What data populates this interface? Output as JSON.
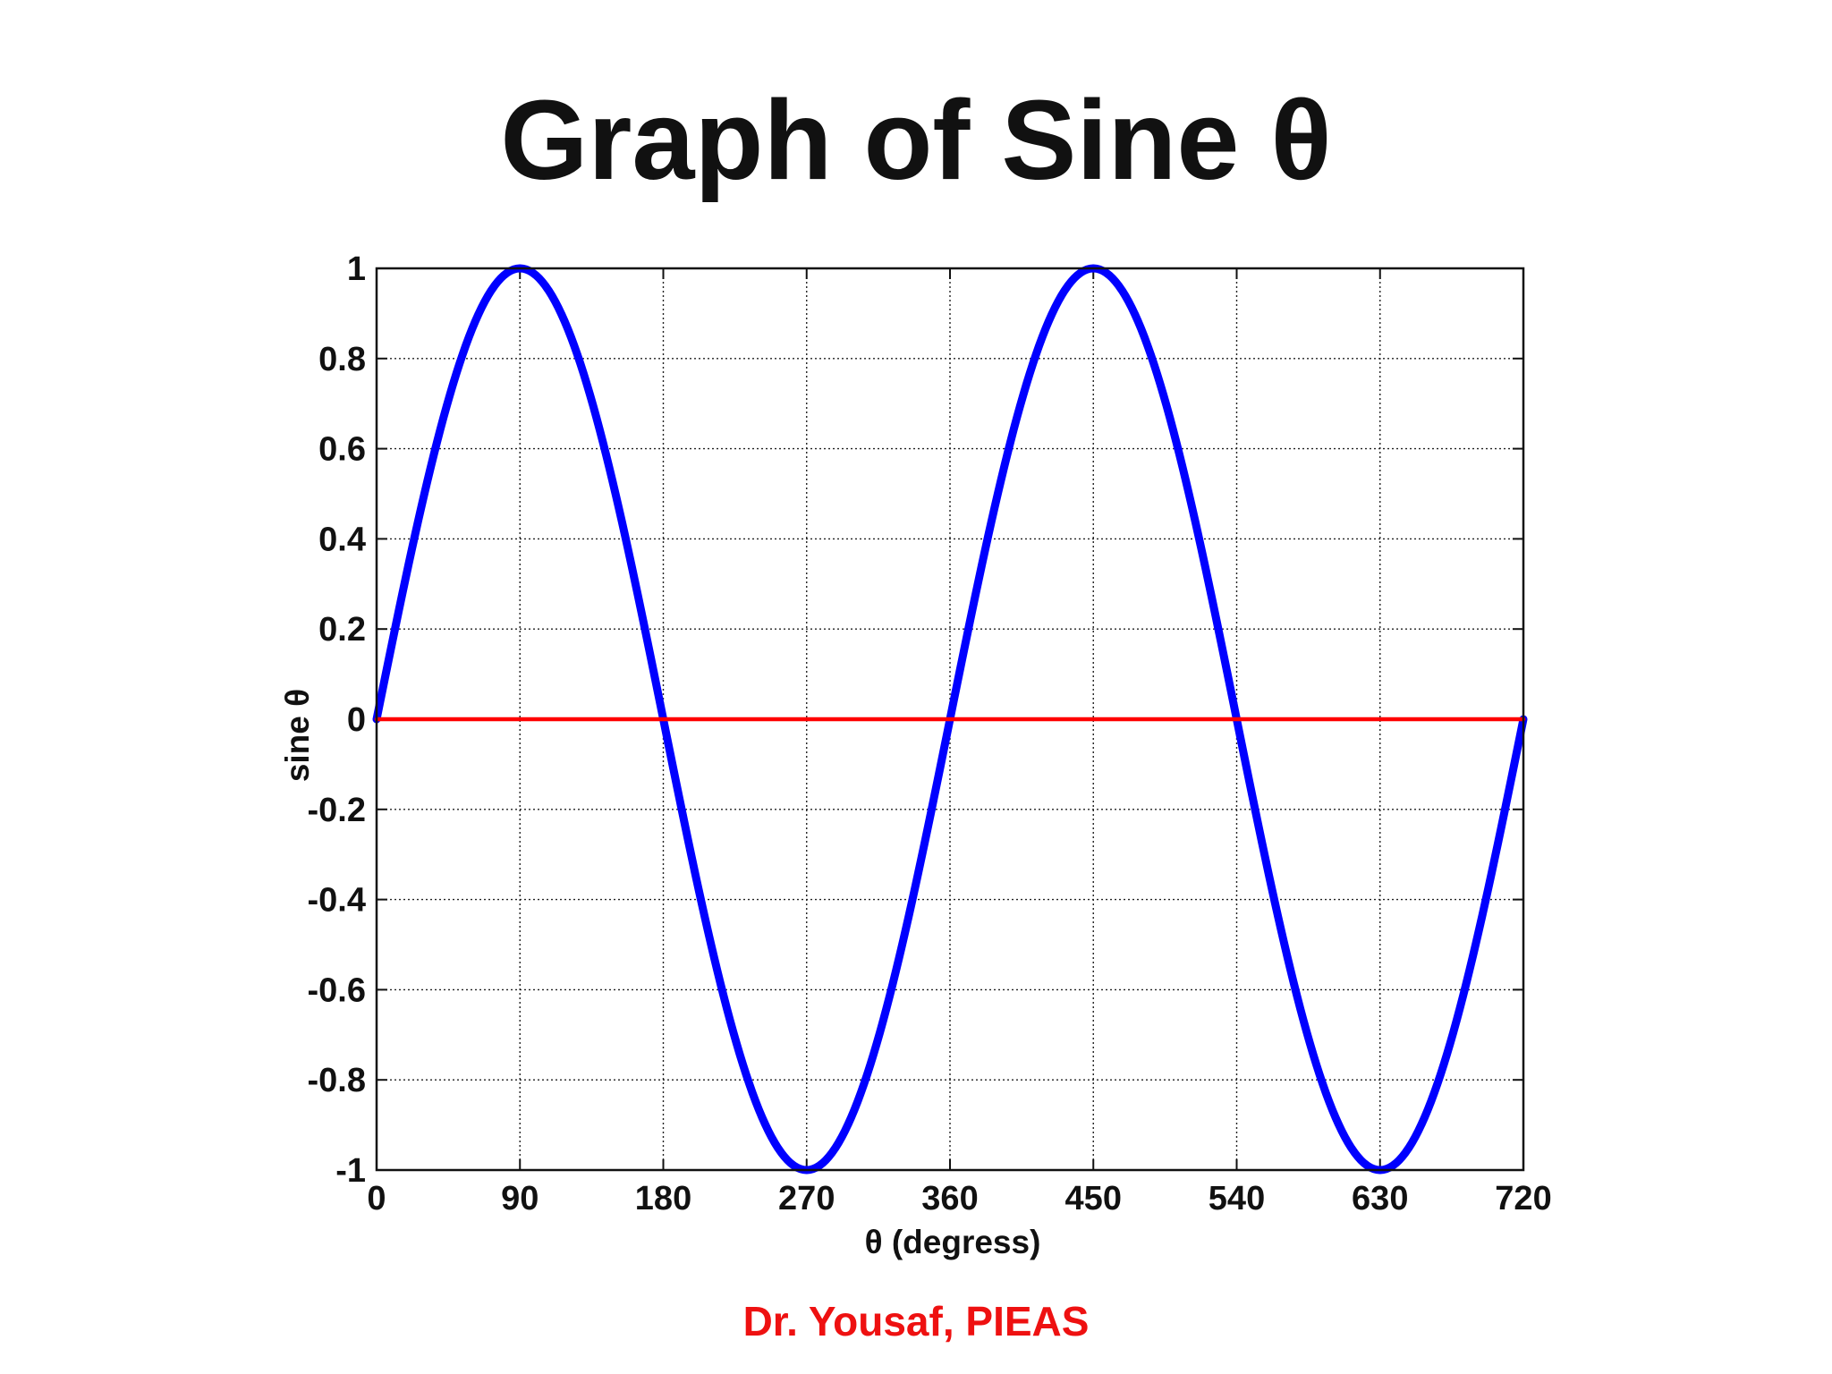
{
  "title": "Graph of Sine θ",
  "footer": "Dr. Yousaf, PIEAS",
  "chart_data": {
    "type": "line",
    "xlabel": "θ (degress)",
    "ylabel": "sine θ",
    "xlim": [
      0,
      720
    ],
    "ylim": [
      -1,
      1
    ],
    "x_ticks": [
      0,
      90,
      180,
      270,
      360,
      450,
      540,
      630,
      720
    ],
    "y_ticks": [
      1,
      0.8,
      0.6,
      0.4,
      0.2,
      0,
      -0.2,
      -0.4,
      -0.6,
      -0.8,
      -1
    ],
    "x_tick_labels": [
      "0",
      "90",
      "180",
      "270",
      "360",
      "450",
      "540",
      "630",
      "720"
    ],
    "y_tick_labels": [
      "1",
      "0.8",
      "0.6",
      "0.4",
      "0.2",
      "0",
      "-0.2",
      "-0.4",
      "-0.6",
      "-0.8",
      "-1"
    ],
    "grid": true,
    "series": [
      {
        "color": "#0000ff",
        "x": [
          0,
          15,
          30,
          45,
          60,
          75,
          90,
          105,
          120,
          135,
          150,
          165,
          180,
          195,
          210,
          225,
          240,
          255,
          270,
          285,
          300,
          315,
          330,
          345,
          360,
          375,
          390,
          405,
          420,
          435,
          450,
          465,
          480,
          495,
          510,
          525,
          540,
          555,
          570,
          585,
          600,
          615,
          630,
          645,
          660,
          675,
          690,
          705,
          720
        ],
        "y": [
          0,
          0.259,
          0.5,
          0.707,
          0.866,
          0.966,
          1,
          0.966,
          0.866,
          0.707,
          0.5,
          0.259,
          0,
          -0.259,
          -0.5,
          -0.707,
          -0.866,
          -0.966,
          -1,
          -0.966,
          -0.866,
          -0.707,
          -0.5,
          -0.259,
          0,
          0.259,
          0.5,
          0.707,
          0.866,
          0.966,
          1,
          0.966,
          0.866,
          0.707,
          0.5,
          0.259,
          0,
          -0.259,
          -0.5,
          -0.707,
          -0.866,
          -0.966,
          -1,
          -0.966,
          -0.866,
          -0.707,
          -0.5,
          -0.259,
          0
        ]
      },
      {
        "color": "#ff0000",
        "x": [
          0,
          720
        ],
        "y": [
          0,
          0
        ]
      }
    ]
  }
}
